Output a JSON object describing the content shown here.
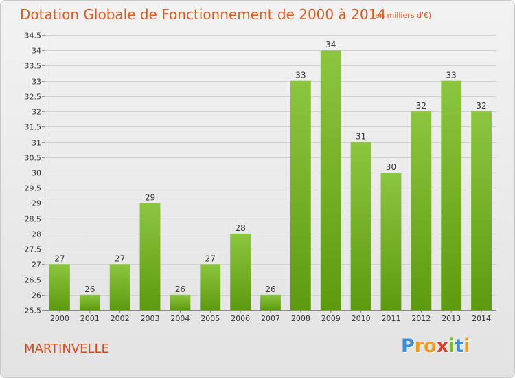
{
  "chart_data": {
    "type": "bar",
    "title": "Dotation Globale de Fonctionnement de 2000 à 2014",
    "subtitle": "(en milliers d'€)",
    "categories": [
      "2000",
      "2001",
      "2002",
      "2003",
      "2004",
      "2005",
      "2006",
      "2007",
      "2008",
      "2009",
      "2010",
      "2011",
      "2012",
      "2013",
      "2014"
    ],
    "values": [
      27,
      26,
      27,
      29,
      26,
      27,
      28,
      26,
      33,
      34,
      31,
      30,
      32,
      33,
      32
    ],
    "ylim": [
      25.5,
      34.5
    ],
    "yticks": [
      "25.5",
      "26",
      "26.5",
      "27",
      "27.5",
      "28",
      "28.5",
      "29",
      "29.5",
      "30",
      "30.5",
      "31",
      "31.5",
      "32",
      "32.5",
      "33",
      "33.5",
      "34",
      "34.5"
    ],
    "grid": true,
    "bar_color": "#8cc63f",
    "bar_color_dark": "#5e9a10"
  },
  "label": "MARTINVELLE",
  "logo": {
    "letters": [
      "P",
      "r",
      "o",
      "x",
      "i",
      "t",
      "i"
    ],
    "colors": [
      "#3a8fd9",
      "#f39a1e",
      "#f39a1e",
      "#e53b2b",
      "#7dbb2a",
      "#3a8fd9",
      "#f39a1e"
    ]
  },
  "colors": {
    "title": "#e05a1f",
    "label": "#d24b1e"
  }
}
